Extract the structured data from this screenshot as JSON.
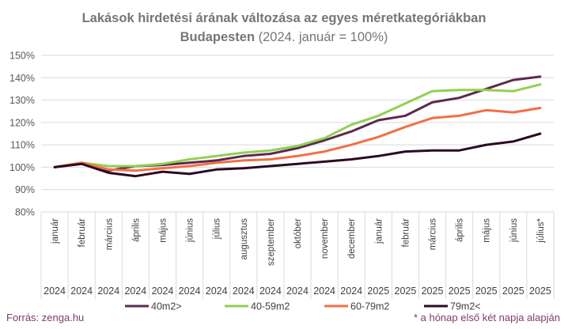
{
  "chart_data": {
    "type": "line",
    "title_line1": "Lakások hirdetési árának változása az egyes méretkategóriákban",
    "title_line2_bold": "Budapesten",
    "title_line2_rest": " (2024. január = 100%)",
    "months": [
      "január",
      "február",
      "március",
      "április",
      "május",
      "június",
      "július",
      "augusztus",
      "szeptember",
      "október",
      "november",
      "december",
      "január",
      "február",
      "március",
      "április",
      "május",
      "június",
      "július*"
    ],
    "years": [
      "2024",
      "2024",
      "2024",
      "2024",
      "2024",
      "2024",
      "2024",
      "2024",
      "2024",
      "2024",
      "2024",
      "2024",
      "2025",
      "2025",
      "2025",
      "2025",
      "2025",
      "2025",
      "2025"
    ],
    "yticks": [
      "150%",
      "140%",
      "130%",
      "120%",
      "110%",
      "100%",
      "90%",
      "80%"
    ],
    "ylim": [
      80,
      150
    ],
    "grid": true,
    "legend_position": "bottom",
    "series": [
      {
        "name": "40m2>",
        "color": "#5c2a4e",
        "values": [
          100,
          102,
          98.5,
          100.5,
          101,
          102,
          103,
          105,
          106,
          108.5,
          112,
          116,
          121,
          123,
          129,
          131,
          135,
          139,
          140.5
        ]
      },
      {
        "name": "40-59m2",
        "color": "#92d050",
        "values": [
          100,
          102,
          100.5,
          100.5,
          101.5,
          103.5,
          105,
          106.5,
          107.5,
          109.5,
          113,
          119,
          123,
          128.5,
          134,
          134.5,
          134.5,
          134,
          137
        ]
      },
      {
        "name": "60-79m2",
        "color": "#f36f45",
        "values": [
          100,
          102,
          99,
          98.5,
          99.5,
          100.5,
          102,
          103,
          103.5,
          105,
          107,
          110,
          113.5,
          118,
          122,
          123,
          125.5,
          124.5,
          126.5
        ]
      },
      {
        "name": "79m2<",
        "color": "#2b0a22",
        "values": [
          100,
          101.5,
          97.5,
          96,
          98,
          97,
          99,
          99.5,
          100.5,
          101.5,
          102.5,
          103.5,
          105,
          107,
          107.5,
          107.5,
          110,
          111.5,
          115
        ]
      }
    ],
    "source": "Forrás: zenga.hu",
    "footnote": "* a hónap első két napja alapján"
  }
}
